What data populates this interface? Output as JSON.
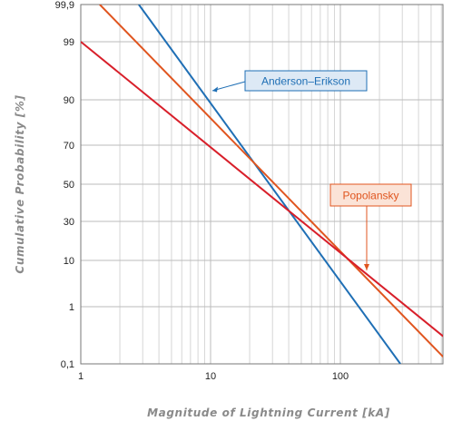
{
  "chart_data": {
    "type": "line",
    "title": "",
    "xlabel": "Magnitude of Lightning Current [kA]",
    "ylabel": "Cumulative Probability [%]",
    "x_scale": "log",
    "y_scale": "probability",
    "xlim": [
      1,
      800
    ],
    "x_ticks": [
      {
        "value": 1,
        "label": "1"
      },
      {
        "value": 10,
        "label": "10"
      },
      {
        "value": 100,
        "label": "100"
      }
    ],
    "y_ticks": [
      {
        "value": 0.1,
        "label": "0,1"
      },
      {
        "value": 1,
        "label": "1"
      },
      {
        "value": 10,
        "label": "10"
      },
      {
        "value": 30,
        "label": "30"
      },
      {
        "value": 50,
        "label": "50"
      },
      {
        "value": 70,
        "label": "70"
      },
      {
        "value": 90,
        "label": "90"
      },
      {
        "value": 99,
        "label": "99"
      },
      {
        "value": 99.9,
        "label": "99,9"
      }
    ],
    "grid": true,
    "series": [
      {
        "name": "Anderson–Erikson",
        "color": "#1f6fb5",
        "points": [
          [
            2.8,
            99.9
          ],
          [
            290,
            0.1
          ]
        ]
      },
      {
        "name": "Popolansky",
        "color": "#e0551f",
        "points": [
          [
            1.4,
            99.9
          ],
          [
            700,
            0.1
          ]
        ]
      },
      {
        "name": "",
        "color": "#d81f2a",
        "points": [
          [
            1,
            99
          ],
          [
            800,
            0.35
          ]
        ]
      }
    ],
    "annotations": [
      {
        "text": "Anderson–Erikson",
        "series": 0,
        "color": "#1f6fb5",
        "bg": "#dde9f5"
      },
      {
        "text": "Popolansky",
        "series": 1,
        "color": "#e0551f",
        "bg": "#fbe3d7"
      }
    ]
  }
}
